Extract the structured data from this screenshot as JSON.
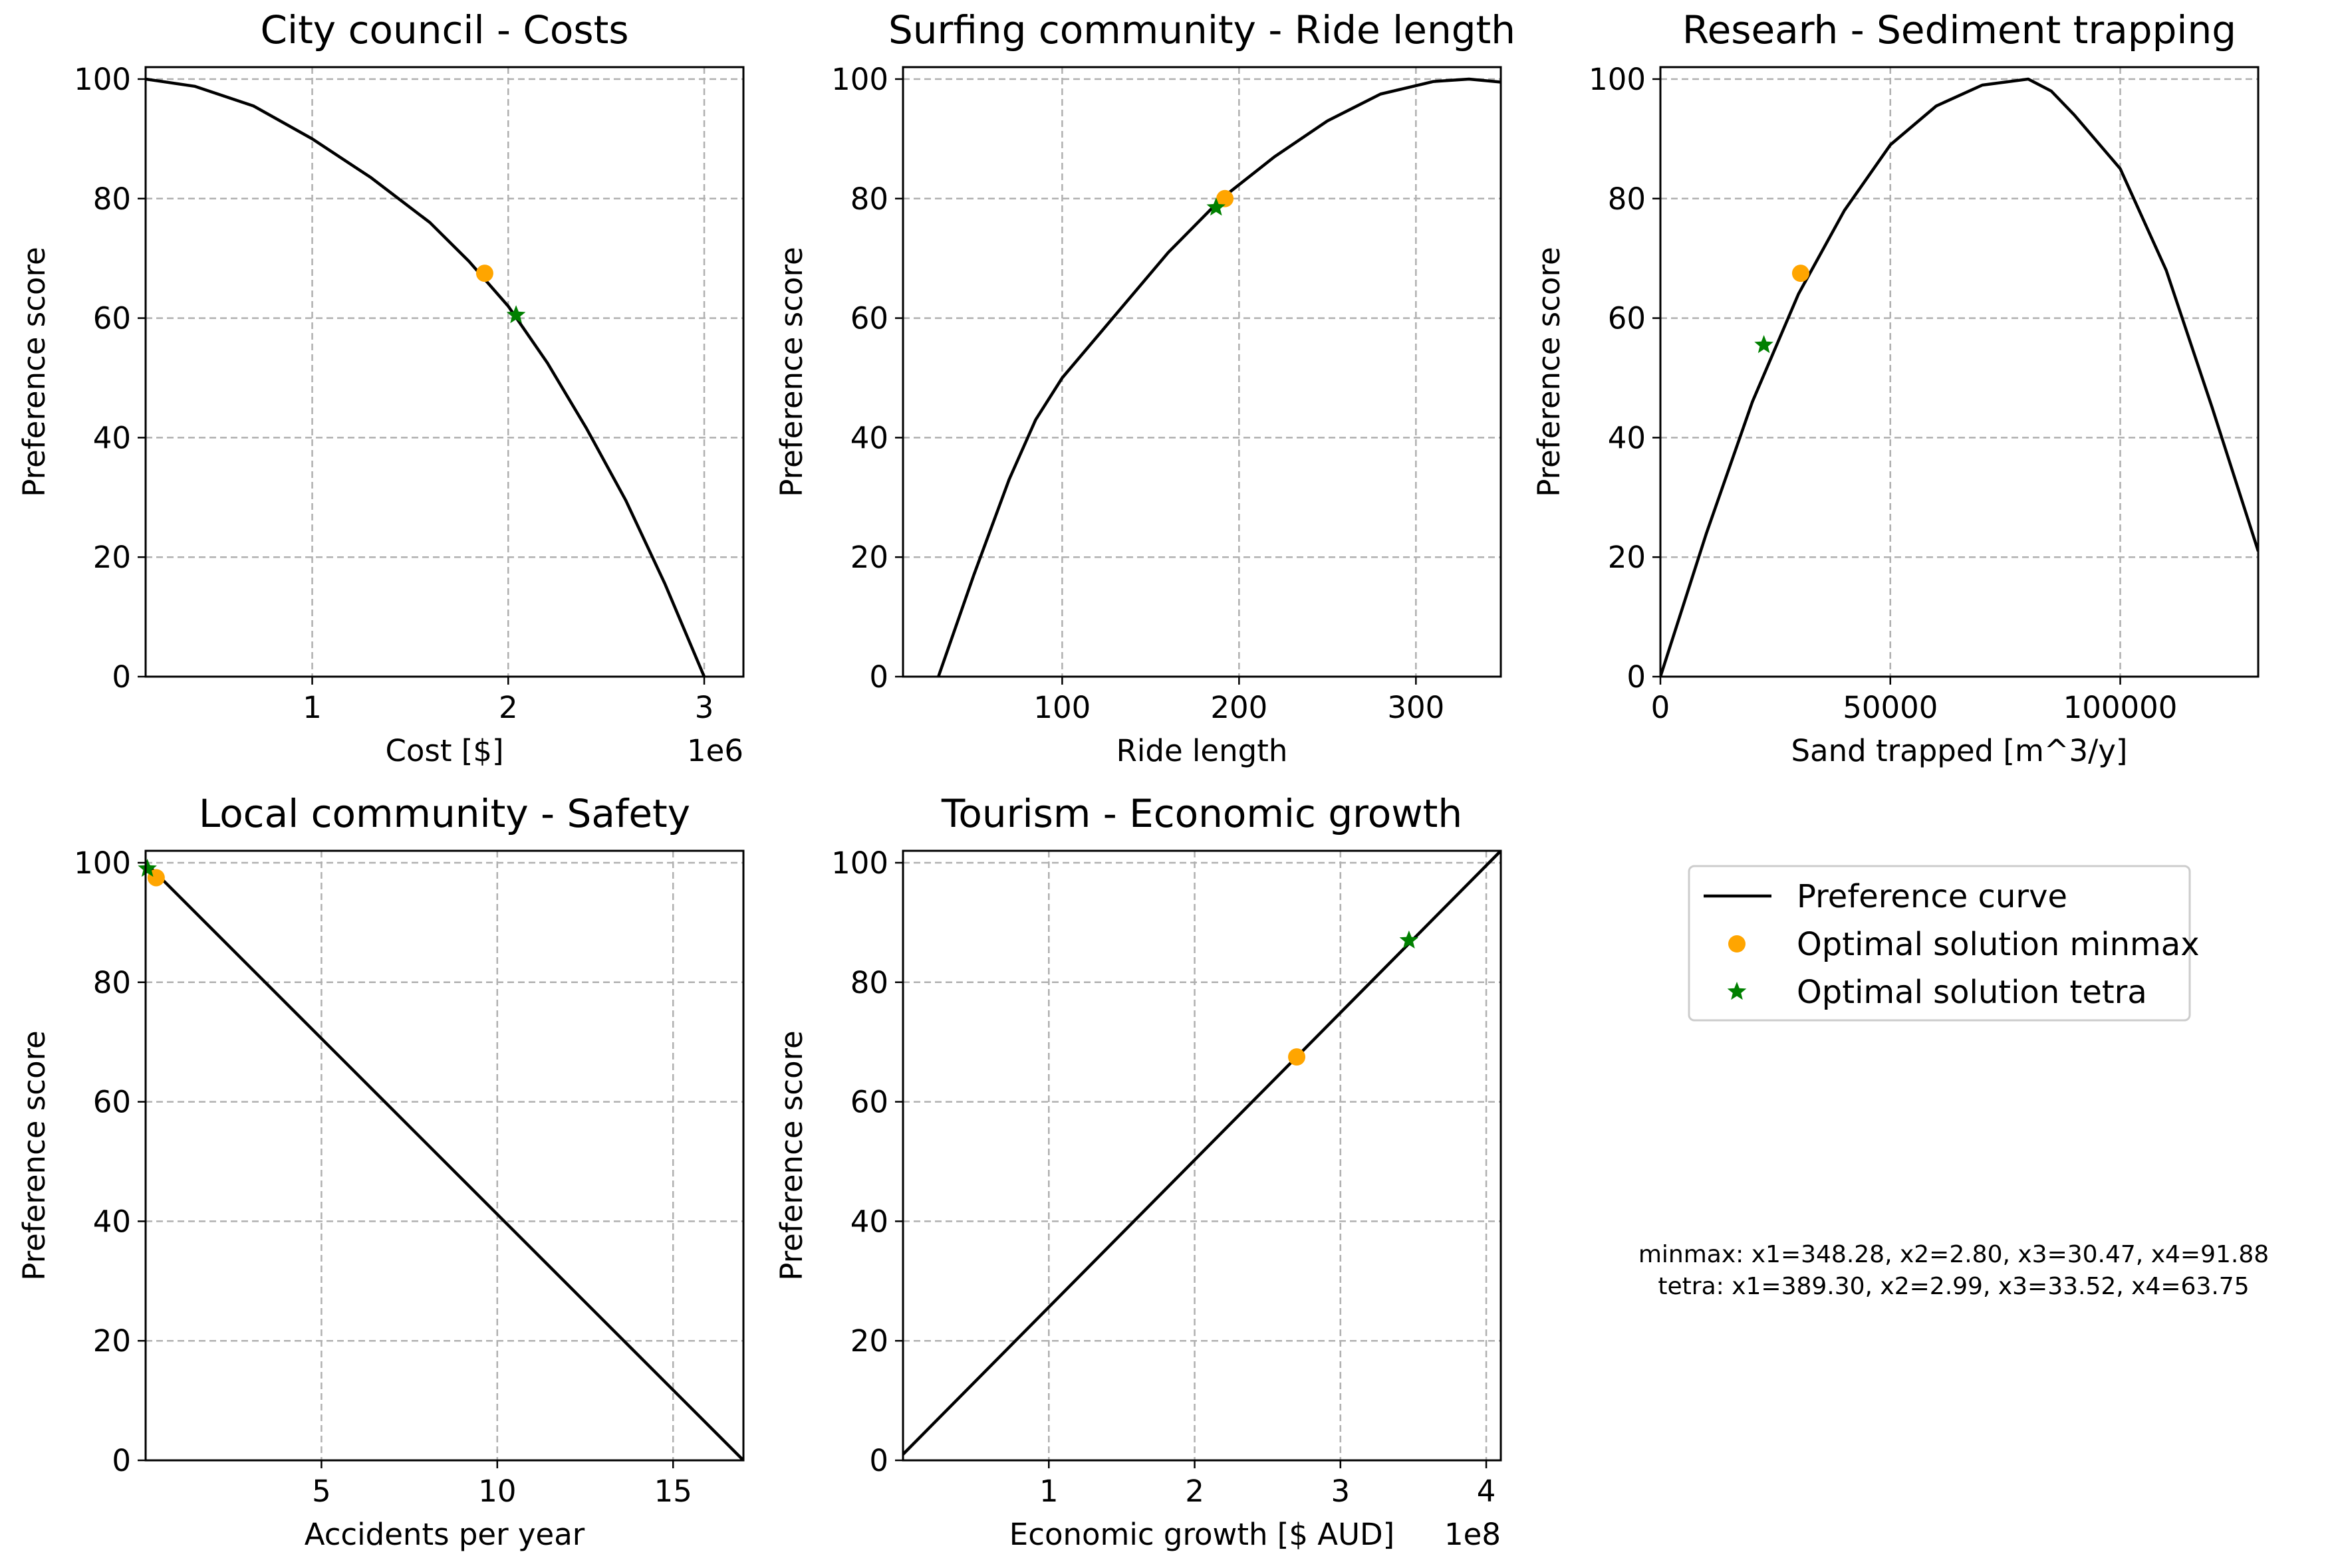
{
  "chart_data": [
    {
      "type": "line",
      "title": "City council - Costs",
      "xlabel": "Cost [$]",
      "ylabel": "Preference score",
      "x_offset_label": "1e6",
      "xlim": [
        0.15,
        3.2
      ],
      "ylim": [
        0,
        102
      ],
      "xticks": [
        1,
        2,
        3
      ],
      "xtick_labels": [
        "1",
        "2",
        "3"
      ],
      "yticks": [
        0,
        20,
        40,
        60,
        80,
        100
      ],
      "grid": true,
      "series": [
        {
          "name": "Preference curve",
          "x": [
            0.15,
            0.4,
            0.7,
            1.0,
            1.3,
            1.6,
            1.8,
            2.0,
            2.2,
            2.4,
            2.6,
            2.8,
            3.0
          ],
          "y": [
            100,
            98.8,
            95.5,
            90.0,
            83.5,
            76.0,
            69.5,
            62.0,
            52.5,
            41.5,
            29.5,
            15.5,
            0
          ]
        },
        {
          "name": "Optimal solution minmax",
          "x": [
            1.88
          ],
          "y": [
            67.5
          ]
        },
        {
          "name": "Optimal solution tetra",
          "x": [
            2.04
          ],
          "y": [
            60.5
          ]
        }
      ]
    },
    {
      "type": "line",
      "title": "Surfing community - Ride length",
      "xlabel": "Ride length",
      "ylabel": "Preference score",
      "xlim": [
        10,
        348
      ],
      "ylim": [
        0,
        102
      ],
      "xticks": [
        100,
        200,
        300
      ],
      "xtick_labels": [
        "100",
        "200",
        "300"
      ],
      "yticks": [
        0,
        20,
        40,
        60,
        80,
        100
      ],
      "grid": true,
      "series": [
        {
          "name": "Preference curve",
          "x": [
            30,
            50,
            70,
            85,
            100,
            130,
            160,
            190,
            220,
            250,
            280,
            310,
            330,
            348
          ],
          "y": [
            0,
            17,
            33,
            43,
            50,
            60.5,
            71,
            80,
            87,
            93,
            97.5,
            99.6,
            100,
            99.5
          ]
        },
        {
          "name": "Optimal solution minmax",
          "x": [
            192
          ],
          "y": [
            80
          ]
        },
        {
          "name": "Optimal solution tetra",
          "x": [
            187
          ],
          "y": [
            78.5
          ]
        }
      ]
    },
    {
      "type": "line",
      "title": "Researh - Sediment trapping",
      "xlabel": "Sand trapped [m^3/y]",
      "ylabel": "Preference score",
      "xlim": [
        0,
        130000
      ],
      "ylim": [
        0,
        102
      ],
      "xticks": [
        0,
        50000,
        100000
      ],
      "xtick_labels": [
        "0",
        "50000",
        "100000"
      ],
      "yticks": [
        0,
        20,
        40,
        60,
        80,
        100
      ],
      "grid": true,
      "series": [
        {
          "name": "Preference curve",
          "x": [
            0,
            10000,
            20000,
            30000,
            40000,
            50000,
            60000,
            70000,
            80000,
            85000,
            90000,
            100000,
            110000,
            120000,
            130000
          ],
          "y": [
            0,
            24,
            46,
            64,
            78,
            89,
            95.5,
            99,
            100,
            98,
            94,
            85,
            68,
            45,
            21
          ]
        },
        {
          "name": "Optimal solution minmax",
          "x": [
            30500
          ],
          "y": [
            67.5
          ]
        },
        {
          "name": "Optimal solution tetra",
          "x": [
            22500
          ],
          "y": [
            55.5
          ]
        }
      ]
    },
    {
      "type": "line",
      "title": "Local community - Safety",
      "xlabel": "Accidents per year",
      "ylabel": "Preference score",
      "xlim": [
        0,
        17
      ],
      "ylim": [
        0,
        102
      ],
      "xticks": [
        5,
        10,
        15
      ],
      "xtick_labels": [
        "5",
        "10",
        "15"
      ],
      "yticks": [
        0,
        20,
        40,
        60,
        80,
        100
      ],
      "grid": true,
      "series": [
        {
          "name": "Preference curve",
          "x": [
            0,
            17
          ],
          "y": [
            100,
            0
          ]
        },
        {
          "name": "Optimal solution minmax",
          "x": [
            0.3
          ],
          "y": [
            97.5
          ]
        },
        {
          "name": "Optimal solution tetra",
          "x": [
            0.05
          ],
          "y": [
            99
          ]
        }
      ]
    },
    {
      "type": "line",
      "title": "Tourism - Economic growth",
      "xlabel": "Economic growth [$ AUD]",
      "ylabel": "Preference score",
      "x_offset_label": "1e8",
      "xlim": [
        0,
        4.1
      ],
      "ylim": [
        0,
        102
      ],
      "xticks": [
        1,
        2,
        3,
        4
      ],
      "xtick_labels": [
        "1",
        "2",
        "3",
        "4"
      ],
      "yticks": [
        0,
        20,
        40,
        60,
        80,
        100
      ],
      "grid": true,
      "series": [
        {
          "name": "Preference curve",
          "x": [
            0,
            4.1
          ],
          "y": [
            1,
            102
          ]
        },
        {
          "name": "Optimal solution minmax",
          "x": [
            2.7
          ],
          "y": [
            67.5
          ]
        },
        {
          "name": "Optimal solution tetra",
          "x": [
            3.47
          ],
          "y": [
            87
          ]
        }
      ]
    }
  ],
  "legend": {
    "placement": "right column, top",
    "entries": [
      {
        "label": "Preference curve",
        "marker": "line",
        "color": "#000000"
      },
      {
        "label": "Optimal solution minmax",
        "marker": "circle",
        "color": "#ffa500"
      },
      {
        "label": "Optimal solution tetra",
        "marker": "star",
        "color": "#008000"
      }
    ]
  },
  "annotation": {
    "line1": "minmax: x1=348.28, x2=2.80, x3=30.47, x4=91.88",
    "line2": "tetra: x1=389.30, x2=2.99, x3=33.52, x4=63.75"
  },
  "colors": {
    "curve": "#000000",
    "minmax": "#ffa500",
    "tetra": "#008000",
    "grid": "#b0b0b0"
  }
}
